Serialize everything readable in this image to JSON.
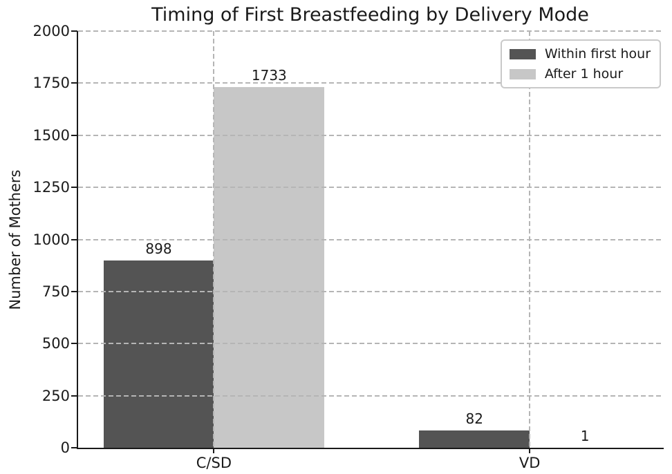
{
  "chart_data": {
    "type": "bar",
    "title": "Timing of First Breastfeeding by Delivery Mode",
    "ylabel": "Number of Mothers",
    "xlabel": "",
    "categories": [
      "C/SD",
      "VD"
    ],
    "series": [
      {
        "name": "Within first hour",
        "color": "#545454",
        "values": [
          898,
          82
        ]
      },
      {
        "name": "After 1 hour",
        "color": "#c7c7c7",
        "values": [
          1733,
          1
        ]
      }
    ],
    "ylim": [
      0,
      2000
    ],
    "yticks": [
      0,
      250,
      500,
      750,
      1000,
      1250,
      1500,
      1750,
      2000
    ],
    "xlim": [
      -0.43,
      1.42
    ],
    "bar_width": 0.35,
    "bar_value_labels_shown": true,
    "grid": {
      "style": "dashed",
      "axis": "both",
      "color": "#b5b5b5",
      "drawn_over_bars": true
    },
    "legend_position": "upper right",
    "colors": {
      "text": "#1a1a1a",
      "spine": "#1a1a1a",
      "background": "#ffffff"
    }
  }
}
